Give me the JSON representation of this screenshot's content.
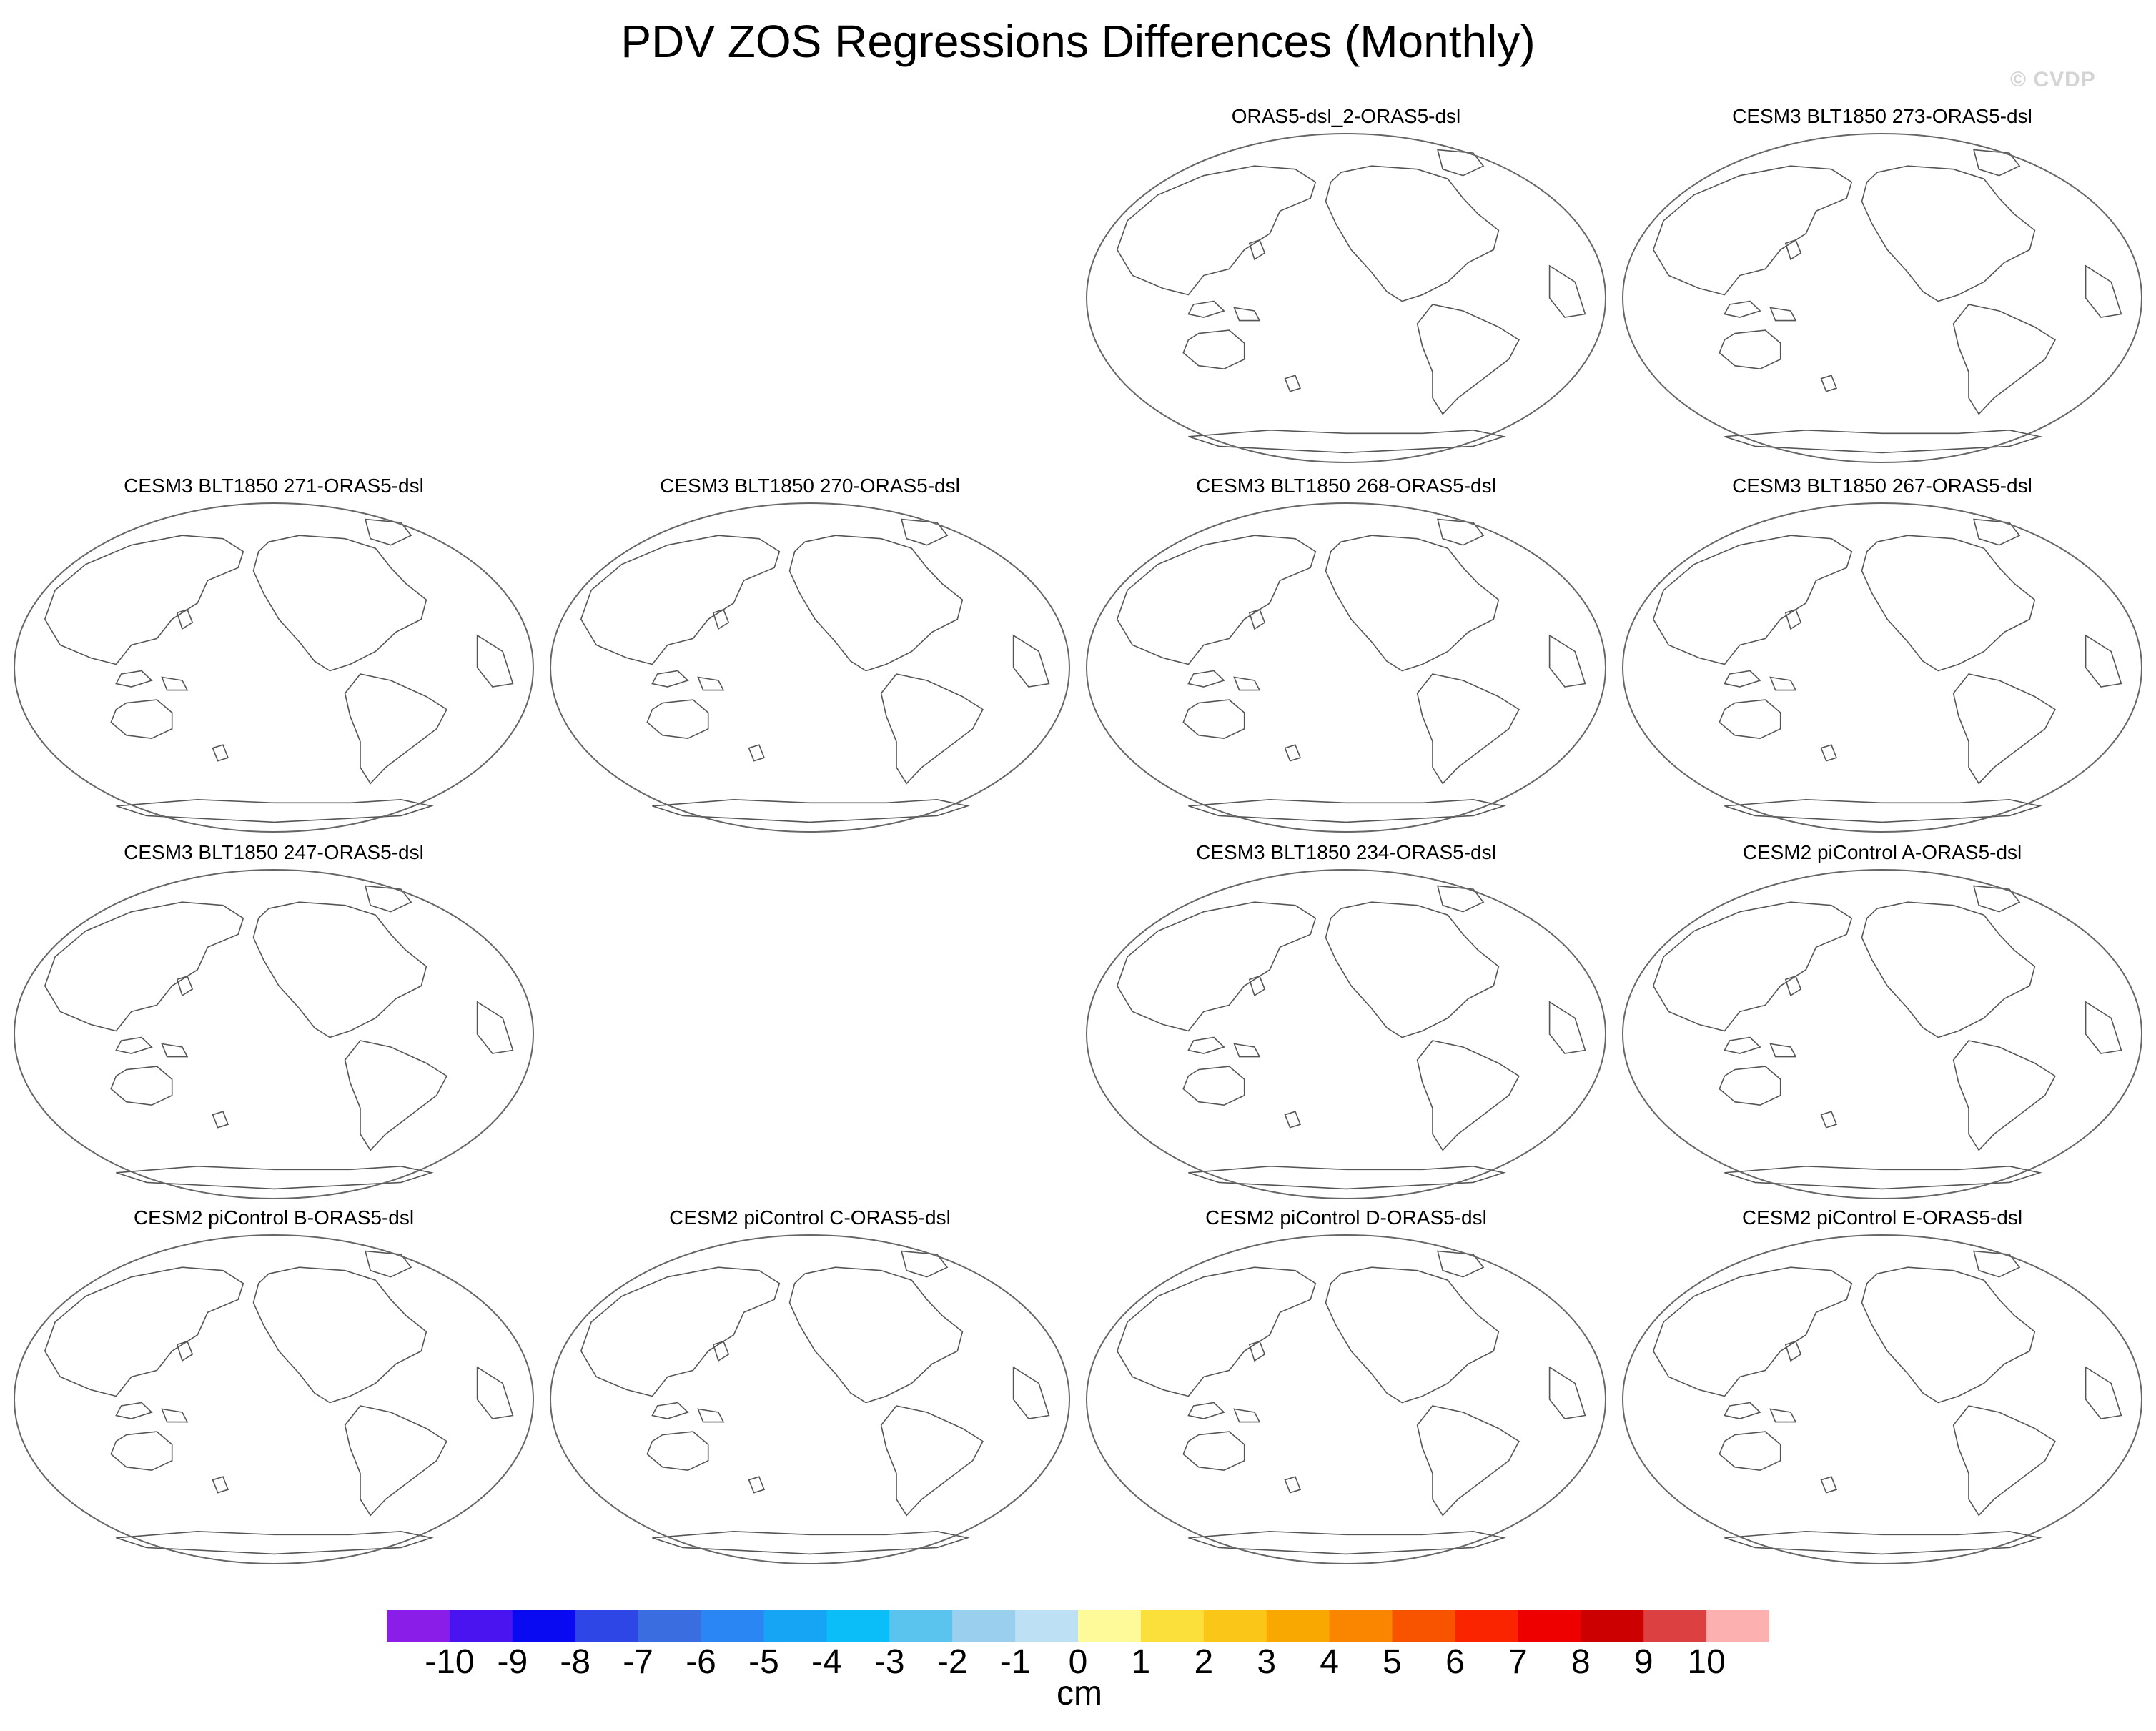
{
  "title": "PDV ZOS Regressions Differences (Monthly)",
  "watermark": "© CVDP",
  "panels": [
    {
      "title": "ORAS5-dsl_2-ORAS5-dsl"
    },
    {
      "title": "CESM3 BLT1850 273-ORAS5-dsl"
    },
    {
      "title": "CESM3 BLT1850 271-ORAS5-dsl"
    },
    {
      "title": "CESM3 BLT1850 270-ORAS5-dsl"
    },
    {
      "title": "CESM3 BLT1850 268-ORAS5-dsl"
    },
    {
      "title": "CESM3 BLT1850 267-ORAS5-dsl"
    },
    {
      "title": "CESM3 BLT1850 247-ORAS5-dsl"
    },
    {
      "title": "CESM3 BLT1850 234-ORAS5-dsl"
    },
    {
      "title": "CESM2 piControl A-ORAS5-dsl"
    },
    {
      "title": "CESM2 piControl B-ORAS5-dsl"
    },
    {
      "title": "CESM2 piControl C-ORAS5-dsl"
    },
    {
      "title": "CESM2 piControl D-ORAS5-dsl"
    },
    {
      "title": "CESM2 piControl E-ORAS5-dsl"
    }
  ],
  "colorbar": {
    "units": "cm",
    "labels": [
      "-10",
      "-9",
      "-8",
      "-7",
      "-6",
      "-5",
      "-4",
      "-3",
      "-2",
      "-1",
      "0",
      "1",
      "2",
      "3",
      "4",
      "5",
      "6",
      "7",
      "8",
      "9",
      "10"
    ],
    "colors": [
      "#8a1ee8",
      "#4a14f0",
      "#0a0af2",
      "#2e46e6",
      "#3a6ee0",
      "#2a86f2",
      "#16a4f4",
      "#0cbef8",
      "#5ac4ee",
      "#9ad0ee",
      "#bee0f4",
      "#fefa9a",
      "#fbe03c",
      "#fac618",
      "#f8a800",
      "#fa8600",
      "#f85400",
      "#fa2400",
      "#ee0000",
      "#cc0000",
      "#dc4040",
      "#fcb0b0"
    ]
  }
}
